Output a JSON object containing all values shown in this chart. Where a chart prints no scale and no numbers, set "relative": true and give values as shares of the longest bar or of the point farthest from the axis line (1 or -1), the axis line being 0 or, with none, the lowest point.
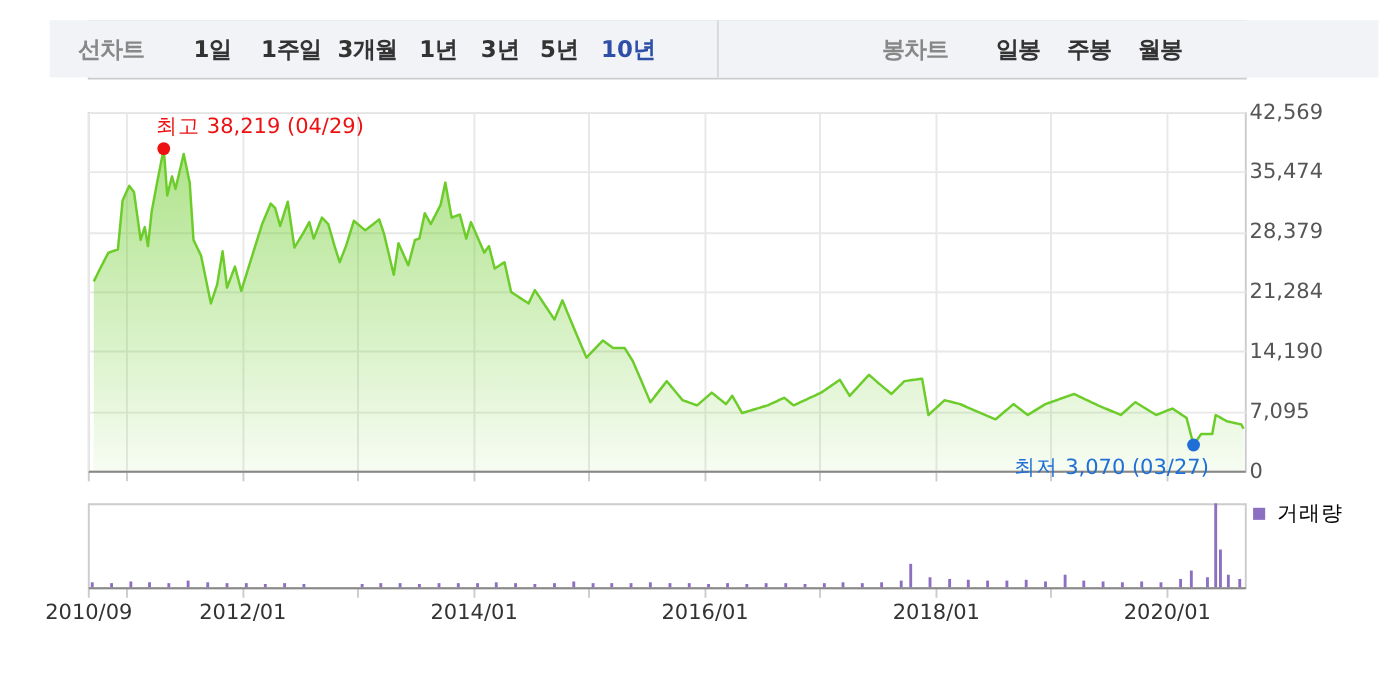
{
  "chart_data": [
    {
      "type": "other",
      "annotations": [
        "선차트",
        "1일",
        "1주일",
        "3개월",
        "1년",
        "3년",
        "5년",
        "10년",
        "봉차트",
        "일봉",
        "주봉",
        "월봉"
      ]
    },
    {
      "type": "area",
      "tick_labels": "y",
      "grid": true,
      "marker": "none",
      "line_style": "solid",
      "xlim": [
        "2010-09-01",
        "2020-09-05"
      ],
      "xticks": [
        {
          "value": "2010-09-01",
          "label": null
        },
        {
          "value": "2011-01-01",
          "label": null
        },
        {
          "value": "2012-01-01",
          "label": null
        },
        {
          "value": "2013-01-01",
          "label": null
        },
        {
          "value": "2014-01-01",
          "label": null
        },
        {
          "value": "2015-01-01",
          "label": null
        },
        {
          "value": "2016-01-01",
          "label": null
        },
        {
          "value": "2017-01-01",
          "label": null
        },
        {
          "value": "2018-01-01",
          "label": null
        },
        {
          "value": "2019-01-01",
          "label": null
        },
        {
          "value": "2020-01-01",
          "label": null
        }
      ],
      "ylim": [
        0,
        42569
      ],
      "yticks": [
        0,
        {
          "value": 7095,
          "label": "7,095"
        },
        {
          "value": 14190,
          "label": "14,190"
        },
        {
          "value": 21284,
          "label": "21,284"
        },
        {
          "value": 28379,
          "label": "28,379"
        },
        {
          "value": 35474,
          "label": "35,474"
        },
        {
          "value": 42569,
          "label": "42,569"
        }
      ],
      "annotations": [
        {
          "text": "최고 38,219 (04/29)",
          "x": "2011-04-29",
          "y": 38219
        },
        {
          "text": "최저 3,070 (03/27)",
          "x": "2020-03-27",
          "y": 3070
        }
      ],
      "series": [
        {
          "color": "#6ccc2a",
          "x": [
            "2010-09-20",
            "2010-10-10",
            "2010-11-05",
            "2010-12-05",
            "2010-12-20",
            "2011-01-10",
            "2011-01-25",
            "2011-02-15",
            "2011-02-28",
            "2011-03-10",
            "2011-03-22",
            "2011-04-08",
            "2011-04-29",
            "2011-05-10",
            "2011-05-25",
            "2011-06-05",
            "2011-07-01",
            "2011-07-20",
            "2011-08-01",
            "2011-08-25",
            "2011-09-25",
            "2011-10-15",
            "2011-11-01",
            "2011-11-15",
            "2011-12-10",
            "2011-12-30",
            "2012-02-15",
            "2012-03-05",
            "2012-04-01",
            "2012-04-15",
            "2012-05-01",
            "2012-05-25",
            "2012-06-15",
            "2012-07-12",
            "2012-08-01",
            "2012-08-15",
            "2012-09-10",
            "2012-09-30",
            "2012-10-20",
            "2012-11-05",
            "2012-11-25",
            "2012-12-20",
            "2013-01-25",
            "2013-03-10",
            "2013-03-25",
            "2013-04-25",
            "2013-05-10",
            "2013-06-10",
            "2013-07-01",
            "2013-07-15",
            "2013-08-01",
            "2013-08-20",
            "2013-09-20",
            "2013-10-05",
            "2013-10-25",
            "2013-11-20",
            "2013-12-10",
            "2013-12-25",
            "2014-02-05",
            "2014-02-20",
            "2014-03-10",
            "2014-04-10",
            "2014-05-01",
            "2014-06-25",
            "2014-07-15",
            "2014-09-15",
            "2014-10-10",
            "2014-11-25",
            "2014-12-25",
            "2015-02-15",
            "2015-03-20",
            "2015-04-25",
            "2015-05-20",
            "2015-06-15",
            "2015-07-15",
            "2015-09-05",
            "2015-10-25",
            "2015-12-10",
            "2016-01-25",
            "2016-03-10",
            "2016-03-30",
            "2016-04-30",
            "2016-07-20",
            "2016-09-10",
            "2016-10-10",
            "2017-01-05",
            "2017-03-05",
            "2017-04-05",
            "2017-06-05",
            "2017-07-05",
            "2017-08-15",
            "2017-09-25",
            "2017-11-20",
            "2017-12-10",
            "2018-01-30",
            "2018-03-20",
            "2018-07-10",
            "2018-09-05",
            "2018-10-20",
            "2018-12-15",
            "2019-03-15",
            "2019-05-30",
            "2019-08-10",
            "2019-09-25",
            "2019-11-30",
            "2020-01-20",
            "2020-03-05",
            "2020-03-27",
            "2020-04-20",
            "2020-05-25",
            "2020-06-05",
            "2020-07-10",
            "2020-08-25",
            "2020-09-01"
          ],
          "values": [
            22480,
            24000,
            25880,
            26260,
            32080,
            33800,
            33050,
            27390,
            28910,
            26650,
            30790,
            34190,
            38219,
            32670,
            34930,
            33440,
            37580,
            34190,
            27390,
            25520,
            19860,
            22120,
            26040,
            21730,
            24230,
            21350,
            27010,
            29270,
            31700,
            31180,
            29050,
            31920,
            26490,
            28140,
            29500,
            27550,
            30040,
            29270,
            26650,
            24750,
            26650,
            29660,
            28530,
            29820,
            28140,
            23250,
            27010,
            24380,
            27390,
            27550,
            30560,
            29270,
            31540,
            34190,
            30040,
            30400,
            27550,
            29500,
            25880,
            26650,
            24000,
            24750,
            21210,
            19860,
            21440,
            17950,
            20220,
            16070,
            13430,
            15460,
            14560,
            14560,
            13060,
            10800,
            8150,
            10640,
            8380,
            7770,
            9280,
            7920,
            8900,
            6860,
            7770,
            8670,
            7770,
            9280,
            10800,
            8900,
            11390,
            10410,
            9120,
            10640,
            10940,
            6630,
            8380,
            7920,
            6110,
            7920,
            6630,
            7920,
            9120,
            7770,
            6630,
            8150,
            6630,
            7400,
            6270,
            3070,
            4370,
            4370,
            6630,
            5890,
            5500,
            5000
          ]
        }
      ]
    },
    {
      "type": "bar",
      "relative": true,
      "tick_labels": "x",
      "grid": false,
      "legend": "top right",
      "xlim": [
        "2010-09-01",
        "2020-09-05"
      ],
      "xticks": [
        {
          "value": "2010-09-01",
          "label": "2010/09"
        },
        {
          "value": "2011-01-01",
          "label": null
        },
        {
          "value": "2012-01-01",
          "label": "2012/01"
        },
        {
          "value": "2013-01-01",
          "label": null
        },
        {
          "value": "2014-01-01",
          "label": "2014/01"
        },
        {
          "value": "2015-01-01",
          "label": null
        },
        {
          "value": "2016-01-01",
          "label": "2016/01"
        },
        {
          "value": "2017-01-01",
          "label": null
        },
        {
          "value": "2018-01-01",
          "label": "2018/01"
        },
        {
          "value": "2019-01-01",
          "label": null
        },
        {
          "value": "2020-01-01",
          "label": "2020/01"
        }
      ],
      "series": [
        {
          "name": "거래량",
          "color": "#8d6fc2",
          "x": [
            "2010-09-15",
            "2010-11-15",
            "2011-01-15",
            "2011-03-15",
            "2011-05-15",
            "2011-07-15",
            "2011-09-15",
            "2011-11-15",
            "2012-01-15",
            "2012-03-15",
            "2012-05-15",
            "2012-07-15",
            "2012-09-15",
            "2012-11-15",
            "2013-01-15",
            "2013-03-15",
            "2013-05-15",
            "2013-07-15",
            "2013-09-15",
            "2013-11-15",
            "2014-01-15",
            "2014-03-15",
            "2014-05-15",
            "2014-07-15",
            "2014-09-15",
            "2014-11-15",
            "2015-01-15",
            "2015-03-15",
            "2015-05-15",
            "2015-07-15",
            "2015-09-15",
            "2015-11-15",
            "2016-01-15",
            "2016-03-15",
            "2016-05-15",
            "2016-07-15",
            "2016-09-15",
            "2016-11-15",
            "2017-01-15",
            "2017-03-15",
            "2017-05-15",
            "2017-07-15",
            "2017-09-15",
            "2017-10-15",
            "2017-12-15",
            "2018-02-15",
            "2018-04-15",
            "2018-06-15",
            "2018-08-15",
            "2018-10-15",
            "2018-12-15",
            "2019-02-15",
            "2019-04-15",
            "2019-06-15",
            "2019-08-15",
            "2019-10-15",
            "2019-12-15",
            "2020-02-15",
            "2020-03-20",
            "2020-05-10",
            "2020-06-05",
            "2020-06-20",
            "2020-07-15",
            "2020-08-20"
          ],
          "values": [
            0.06,
            0.05,
            0.07,
            0.06,
            0.05,
            0.08,
            0.06,
            0.05,
            0.05,
            0.04,
            0.05,
            0.04,
            null,
            null,
            0.04,
            0.05,
            0.05,
            0.04,
            0.05,
            0.05,
            0.05,
            0.06,
            0.05,
            0.04,
            0.05,
            0.07,
            0.05,
            0.05,
            0.05,
            0.06,
            0.05,
            0.05,
            0.04,
            0.05,
            0.04,
            0.05,
            0.05,
            0.04,
            0.05,
            0.06,
            0.05,
            0.06,
            0.08,
            0.28,
            0.12,
            0.1,
            0.09,
            0.08,
            0.08,
            0.09,
            0.07,
            0.15,
            0.08,
            0.07,
            0.06,
            0.07,
            0.06,
            0.1,
            0.2,
            0.12,
            1.0,
            0.45,
            0.15,
            0.1
          ]
        }
      ]
    }
  ]
}
